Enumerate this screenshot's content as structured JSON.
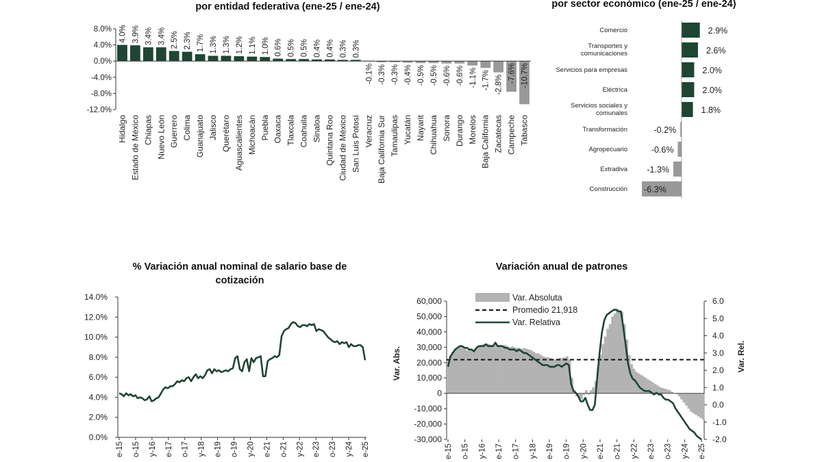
{
  "colors": {
    "positive": "#1e4632",
    "negative": "#999999",
    "line": "#1e4632",
    "area": "#b3b3b3",
    "dashed": "#111111"
  },
  "panels": {
    "states": {
      "title": "por entidad federativa (ene-25 / ene-24)"
    },
    "sectors": {
      "title": "por sector económico (ene-25 / ene-24)"
    },
    "salary": {
      "title_line1": "% Variación anual nominal de salario base de",
      "title_line2": "cotización"
    },
    "employers": {
      "title": "Variación anual de patrones",
      "ylabel_left": "Var. Abs.",
      "ylabel_right": "Var. Rel."
    }
  },
  "chart_data": [
    {
      "type": "bar",
      "title": "por entidad federativa (ene-25 / ene-24)",
      "categories": [
        "Hidalgo",
        "Estado de México",
        "Chiapas",
        "Nuevo León",
        "Guerrero",
        "Colima",
        "Guanajuato",
        "Jalisco",
        "Querétaro",
        "Aguascalientes",
        "Michoacán",
        "Puebla",
        "Oaxaca",
        "Tlaxcala",
        "Coahuila",
        "Sinaloa",
        "Quintana Roo",
        "Ciudad de México",
        "San Luis Potosí",
        "Veracruz",
        "Baja California Sur",
        "Tamaulipas",
        "Yucatán",
        "Nayarit",
        "Chihuahua",
        "Sonora",
        "Durango",
        "Morelos",
        "Baja California",
        "Zacatecas",
        "Campeche",
        "Tabasco"
      ],
      "values": [
        4.0,
        3.9,
        3.4,
        3.4,
        2.5,
        2.3,
        1.7,
        1.3,
        1.3,
        1.2,
        1.1,
        1.0,
        0.6,
        0.5,
        0.5,
        0.4,
        0.4,
        0.3,
        0.3,
        -0.1,
        -0.3,
        -0.3,
        -0.4,
        -0.5,
        -0.5,
        -0.6,
        -0.6,
        -1.1,
        -1.7,
        -2.8,
        -7.6,
        -10.7
      ],
      "labels": [
        "4.0%",
        "3.9%",
        "3.4%",
        "3.4%",
        "2.5%",
        "2.3%",
        "1.7%",
        "1.3%",
        "1.3%",
        "1.2%",
        "1.1%",
        "1.0%",
        "0.6%",
        "0.5%",
        "0.5%",
        "0.4%",
        "0.4%",
        "0.3%",
        "0.3%",
        "-0.1%",
        "-0.3%",
        "-0.3%",
        "-0.4%",
        "-0.5%",
        "-0.5%",
        "-0.6%",
        "-0.6%",
        "-1.1%",
        "-1.7%",
        "-2.8%",
        "-7.6%",
        "-10.7%"
      ],
      "yticks": [
        "8.0%",
        "4.0%",
        "0.0%",
        "-4.0%",
        "-8.0%",
        "-12.0%"
      ],
      "ylim": [
        -12,
        8
      ]
    },
    {
      "type": "bar",
      "orientation": "horizontal",
      "title": "por sector económico (ene-25 / ene-24)",
      "categories": [
        [
          "Comercio"
        ],
        [
          "Transportes y",
          "comunicaciones"
        ],
        [
          "Servicios para empresas"
        ],
        [
          "Eléctrica"
        ],
        [
          "Servicios sociales y",
          "comunales"
        ],
        [
          "Transformación"
        ],
        [
          "Agropecuario"
        ],
        [
          "Extradiva"
        ],
        [
          "Construcción"
        ]
      ],
      "values": [
        2.9,
        2.6,
        2.0,
        2.0,
        1.8,
        -0.2,
        -0.6,
        -1.3,
        -6.3
      ],
      "labels": [
        "2.9%",
        "2.6%",
        "2.0%",
        "2.0%",
        "1.8%",
        "-0.2%",
        "-0.6%",
        "-1.3%",
        "-6.3%"
      ]
    },
    {
      "type": "line",
      "title": "% Variación anual nominal de salario base de cotización",
      "x_start": "ene-15",
      "x_end": "ene-25",
      "xticks": [
        "e-15",
        "o-15",
        "y-16",
        "e-17",
        "o-17",
        "y-18",
        "e-19",
        "o-19",
        "y-20",
        "e-21",
        "o-21",
        "y-22",
        "e-23",
        "o-23",
        "y-24",
        "e-25"
      ],
      "yticks": [
        "14.0%",
        "12.0%",
        "10.0%",
        "8.0%",
        "6.0%",
        "4.0%",
        "2.0%",
        "0.0%"
      ],
      "ylim": [
        0,
        14
      ],
      "values": [
        4.4,
        4.3,
        4.1,
        4.4,
        4.2,
        4.3,
        4.1,
        4.2,
        3.9,
        4.0,
        3.9,
        3.7,
        3.8,
        4.1,
        3.6,
        3.7,
        3.9,
        4.0,
        4.4,
        4.8,
        5.0,
        4.9,
        5.1,
        5.1,
        5.3,
        5.6,
        5.5,
        5.7,
        5.6,
        5.9,
        6.0,
        5.6,
        6.0,
        6.3,
        5.9,
        6.1,
        5.9,
        6.2,
        6.7,
        6.8,
        6.4,
        6.8,
        6.6,
        6.7,
        6.5,
        6.6,
        6.7,
        6.6,
        6.8,
        6.9,
        7.9,
        8.1,
        6.8,
        6.6,
        7.5,
        7.8,
        6.6,
        7.9,
        7.5,
        7.9,
        8.0,
        8.1,
        6.1,
        6.1,
        7.6,
        7.8,
        7.9,
        8.1,
        8.0,
        8.2,
        10.1,
        10.6,
        10.8,
        10.9,
        11.3,
        11.5,
        11.4,
        11.1,
        11.0,
        11.2,
        11.2,
        11.1,
        11.3,
        11.2,
        11.3,
        10.6,
        10.8,
        10.7,
        10.6,
        10.3,
        10.0,
        9.8,
        9.6,
        9.5,
        9.6,
        9.3,
        9.5,
        9.4,
        9.5,
        9.0,
        9.3,
        9.1,
        9.1,
        9.2,
        9.2,
        9.0,
        7.7
      ]
    },
    {
      "type": "area",
      "title": "Variación anual de patrones",
      "xticks": [
        "e-15",
        "o-15",
        "y-16",
        "e-17",
        "o-17",
        "y-18",
        "e-19",
        "o-19",
        "y-20",
        "e-21",
        "o-21",
        "y-22",
        "e-23",
        "o-23",
        "y-24",
        "e-25"
      ],
      "left_yticks": [
        "60,000",
        "50,000",
        "40,000",
        "30,000",
        "20,000",
        "10,000",
        "0",
        "-10,000",
        "-20,000",
        "-30,000"
      ],
      "right_yticks": [
        "6.0",
        "5.0",
        "4.0",
        "3.0",
        "2.0",
        "1.0",
        "0.0",
        "-1.0",
        "-2.0"
      ],
      "ylim_left": [
        -30000,
        60000
      ],
      "ylim_right": [
        -2,
        6
      ],
      "legend": [
        "Var. Absoluta",
        "Promedio 21,918",
        "Var. Relativa"
      ],
      "legend_position": "top-left",
      "average": 21918,
      "absolute": [
        22000,
        24000,
        27000,
        29000,
        30000,
        30000,
        30000,
        29000,
        28000,
        28000,
        28500,
        28000,
        29500,
        30500,
        31500,
        32000,
        32500,
        32000,
        31500,
        31500,
        32500,
        31500,
        31500,
        30500,
        31500,
        30500,
        30000,
        30500,
        30000,
        29500,
        29500,
        29000,
        29500,
        29000,
        28500,
        28000,
        27000,
        26000,
        26000,
        25000,
        24000,
        23500,
        23500,
        23000,
        22500,
        22000,
        22500,
        23000,
        23000,
        23500,
        24000,
        22000,
        10000,
        2000,
        -2000,
        -3000,
        -4000,
        -1000,
        2000,
        -1000,
        2000,
        4000,
        8000,
        17000,
        25000,
        32000,
        37000,
        42000,
        45000,
        50000,
        52000,
        55000,
        54000,
        53000,
        45000,
        35000,
        25000,
        19000,
        16000,
        14000,
        13000,
        12000,
        11000,
        10000,
        9000,
        8000,
        7000,
        6000,
        5000,
        4000,
        3500,
        3000,
        2500,
        2000,
        1000,
        0,
        -500,
        -2000,
        -4000,
        -6000,
        -8000,
        -10000,
        -12000,
        -13000,
        -14000,
        -15000,
        -16000,
        -17000
      ],
      "relative": [
        2.2,
        2.8,
        3.0,
        3.2,
        3.3,
        3.4,
        3.4,
        3.3,
        3.3,
        3.2,
        3.2,
        3.1,
        3.3,
        3.4,
        3.4,
        3.4,
        3.5,
        3.4,
        3.4,
        3.4,
        3.6,
        3.4,
        3.4,
        3.4,
        3.3,
        3.3,
        3.2,
        3.2,
        3.2,
        3.1,
        3.2,
        3.1,
        3.0,
        3.0,
        2.9,
        2.8,
        2.7,
        2.6,
        2.5,
        2.4,
        2.3,
        2.3,
        2.3,
        2.2,
        2.2,
        2.2,
        2.3,
        2.3,
        2.2,
        2.3,
        2.4,
        2.3,
        1.2,
        0.8,
        0.7,
        0.5,
        0.2,
        0.2,
        0.4,
        0.0,
        -0.3,
        -0.3,
        0.0,
        1.6,
        3.0,
        4.2,
        4.9,
        5.2,
        5.3,
        5.4,
        5.5,
        5.5,
        5.4,
        5.4,
        4.5,
        3.5,
        2.4,
        1.8,
        1.5,
        1.4,
        1.2,
        1.0,
        0.9,
        0.8,
        0.8,
        0.8,
        0.7,
        0.6,
        0.7,
        0.6,
        0.6,
        0.4,
        0.3,
        0.3,
        0.2,
        0.1,
        -0.2,
        -0.4,
        -0.6,
        -0.8,
        -1.0,
        -1.2,
        -1.4,
        -1.5,
        -1.6,
        -1.8,
        -1.9,
        -2.0
      ]
    }
  ]
}
